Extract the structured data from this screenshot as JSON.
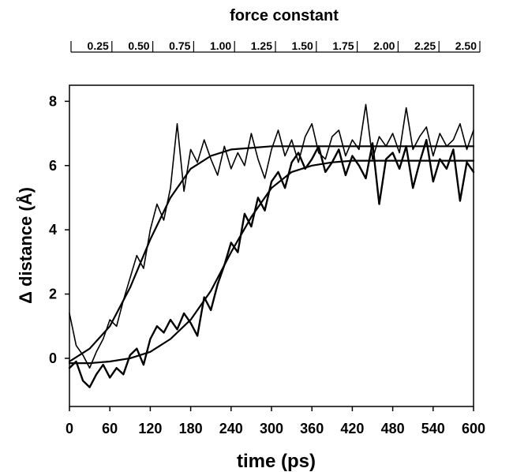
{
  "chart_data": {
    "type": "line",
    "title": "",
    "xlabel": "time (ps)",
    "ylabel": "Δ distance (Å)",
    "top_axis_label": "force constant",
    "xlim": [
      0,
      600
    ],
    "ylim": [
      -1.5,
      8.5
    ],
    "x_ticks": [
      0,
      60,
      120,
      180,
      240,
      300,
      360,
      420,
      480,
      540,
      600
    ],
    "x_tick_labels": [
      "0",
      "60",
      "120",
      "180",
      "240",
      "300",
      "360",
      "420",
      "480",
      "540",
      "600"
    ],
    "y_ticks": [
      0,
      2,
      4,
      6,
      8
    ],
    "y_tick_labels": [
      "0",
      "2",
      "4",
      "6",
      "8"
    ],
    "top_ticks": [
      0.25,
      0.5,
      0.75,
      1.0,
      1.25,
      1.5,
      1.75,
      2.0,
      2.25,
      2.5
    ],
    "top_tick_labels": [
      "0.25",
      "0.50",
      "0.75",
      "1.00",
      "1.25",
      "1.50",
      "1.75",
      "2.00",
      "2.25",
      "2.50"
    ],
    "top_axis_range": [
      0,
      2.5
    ],
    "grid": false,
    "legend": "none",
    "series": [
      {
        "style": "thin noisy",
        "x": [
          0,
          10,
          20,
          30,
          40,
          50,
          60,
          70,
          80,
          90,
          100,
          110,
          120,
          130,
          140,
          150,
          160,
          170,
          180,
          190,
          200,
          210,
          220,
          230,
          240,
          250,
          260,
          270,
          280,
          290,
          300,
          310,
          320,
          330,
          340,
          350,
          360,
          370,
          380,
          390,
          400,
          410,
          420,
          430,
          440,
          450,
          460,
          470,
          480,
          490,
          500,
          510,
          520,
          530,
          540,
          550,
          560,
          570,
          580,
          590,
          600
        ],
        "y": [
          1.4,
          0.4,
          0.1,
          -0.3,
          0.2,
          0.6,
          1.2,
          1.0,
          1.8,
          2.5,
          3.2,
          2.8,
          4.0,
          4.8,
          4.3,
          5.3,
          7.3,
          5.2,
          6.5,
          6.1,
          6.8,
          6.2,
          5.7,
          6.6,
          5.9,
          6.4,
          6.0,
          7.0,
          6.2,
          5.6,
          6.5,
          7.1,
          6.3,
          6.8,
          6.1,
          6.9,
          7.3,
          6.4,
          6.2,
          6.9,
          7.1,
          6.3,
          6.8,
          6.5,
          7.9,
          6.2,
          6.9,
          6.6,
          7.0,
          6.4,
          7.8,
          6.5,
          6.9,
          7.2,
          6.3,
          7.0,
          6.6,
          6.8,
          7.3,
          6.5,
          7.1
        ]
      },
      {
        "style": "thick noisy",
        "x": [
          0,
          10,
          20,
          30,
          40,
          50,
          60,
          70,
          80,
          90,
          100,
          110,
          120,
          130,
          140,
          150,
          160,
          170,
          180,
          190,
          200,
          210,
          220,
          230,
          240,
          250,
          260,
          270,
          280,
          290,
          300,
          310,
          320,
          330,
          340,
          350,
          360,
          370,
          380,
          390,
          400,
          410,
          420,
          430,
          440,
          450,
          460,
          470,
          480,
          490,
          500,
          510,
          520,
          530,
          540,
          550,
          560,
          570,
          580,
          590,
          600
        ],
        "y": [
          -0.3,
          -0.1,
          -0.7,
          -0.9,
          -0.5,
          -0.2,
          -0.6,
          -0.3,
          -0.5,
          0.1,
          0.3,
          -0.2,
          0.6,
          1.0,
          0.8,
          1.2,
          0.9,
          1.4,
          1.1,
          0.7,
          1.9,
          1.5,
          2.3,
          2.9,
          3.6,
          3.3,
          4.5,
          4.1,
          5.0,
          4.6,
          5.5,
          5.8,
          5.3,
          6.1,
          6.4,
          5.9,
          6.2,
          6.6,
          5.8,
          6.1,
          6.5,
          5.7,
          6.3,
          6.0,
          5.6,
          6.7,
          4.8,
          6.2,
          6.4,
          5.9,
          6.6,
          5.3,
          6.1,
          6.8,
          5.5,
          6.2,
          5.9,
          6.5,
          4.9,
          6.1,
          5.8
        ]
      },
      {
        "style": "smooth fit",
        "x": [
          0,
          30,
          60,
          90,
          120,
          150,
          180,
          210,
          240,
          270,
          300,
          330,
          360,
          390,
          420,
          450,
          480,
          510,
          540,
          570,
          600
        ],
        "y": [
          -0.1,
          0.3,
          1.0,
          2.2,
          3.7,
          5.0,
          5.9,
          6.3,
          6.5,
          6.55,
          6.6,
          6.6,
          6.6,
          6.6,
          6.6,
          6.6,
          6.6,
          6.6,
          6.6,
          6.6,
          6.6
        ]
      },
      {
        "style": "smooth fit",
        "x": [
          0,
          30,
          60,
          90,
          120,
          150,
          180,
          210,
          240,
          270,
          300,
          330,
          360,
          390,
          420,
          450,
          480,
          510,
          540,
          570,
          600
        ],
        "y": [
          -0.15,
          -0.15,
          -0.1,
          0.0,
          0.2,
          0.6,
          1.2,
          2.1,
          3.3,
          4.4,
          5.3,
          5.8,
          6.0,
          6.1,
          6.15,
          6.15,
          6.15,
          6.15,
          6.15,
          6.15,
          6.15
        ]
      }
    ]
  }
}
